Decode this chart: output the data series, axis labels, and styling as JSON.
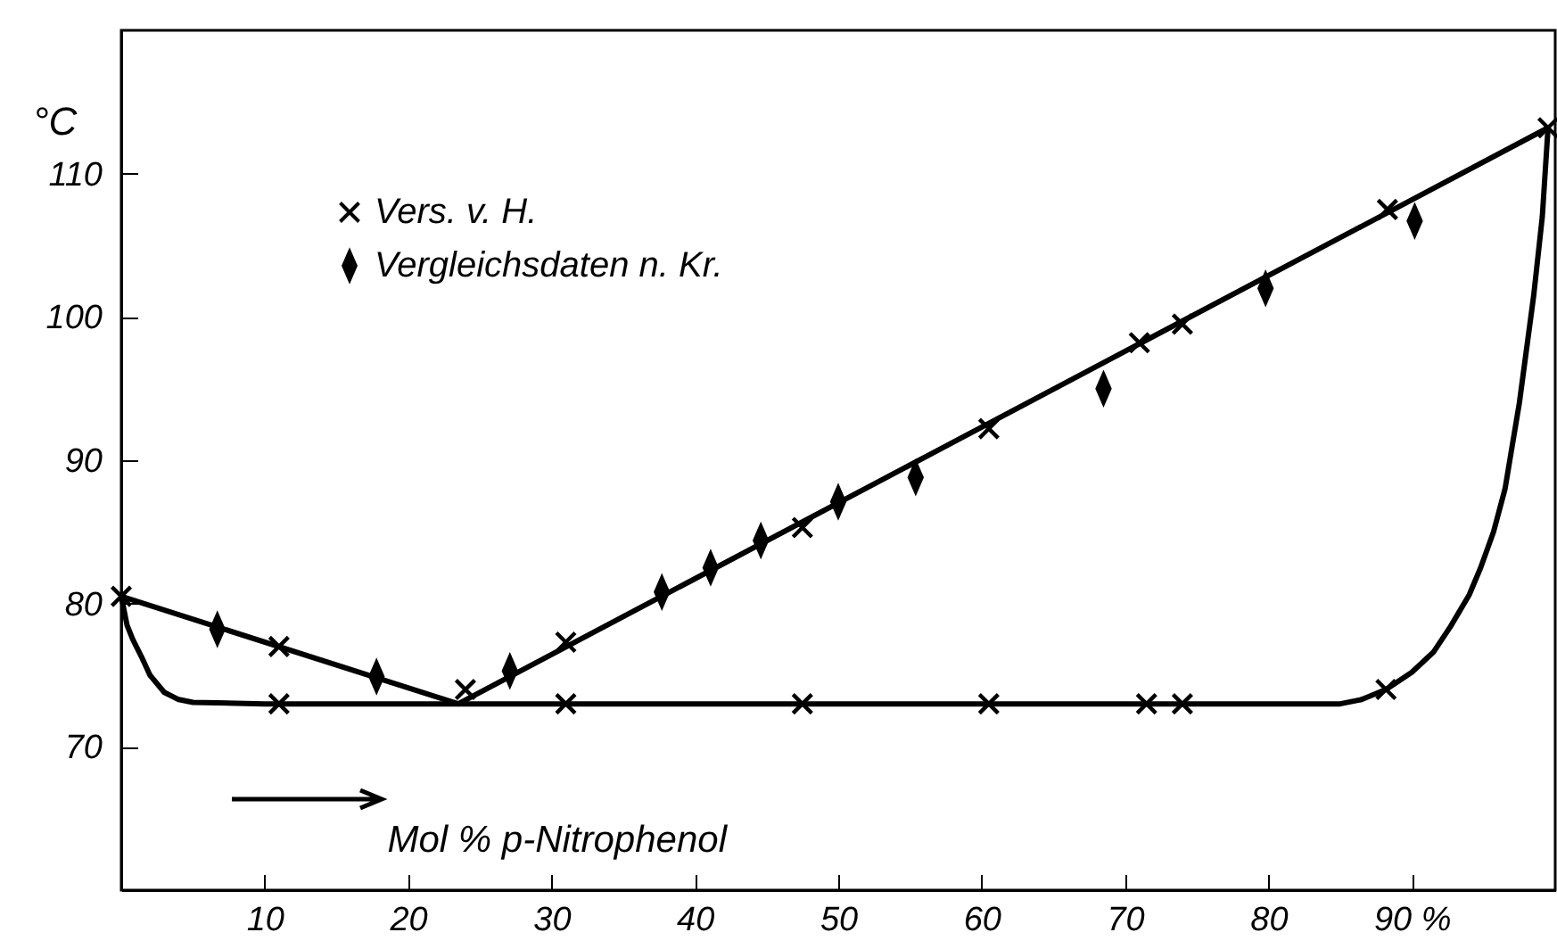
{
  "chart_data": {
    "type": "line",
    "xlabel": "Mol % p-Nitrophenol",
    "ylabel": "°C",
    "xlim": [
      0,
      100
    ],
    "ylim": [
      60,
      120
    ],
    "xticks": [
      10,
      20,
      30,
      40,
      50,
      60,
      70,
      80,
      {
        "value": 90,
        "label": "90 %"
      }
    ],
    "yticks": [
      70,
      80,
      90,
      100,
      110
    ],
    "grid": false,
    "legend": "top left",
    "series": [
      {
        "color": "#000000",
        "marker": "none",
        "x": [
          0,
          23.5,
          99.5
        ],
        "values": [
          80.5,
          73,
          113.2
        ]
      },
      {
        "color": "#000000",
        "marker": "none",
        "x": [
          0,
          0.4,
          0.8,
          1.4,
          2,
          3,
          4,
          5,
          10,
          85,
          86.5,
          88.2,
          90,
          91.5,
          92.7,
          94,
          94.8,
          95.7,
          96.5,
          97.5,
          98.5,
          99.1,
          99.5
        ],
        "values": [
          80.5,
          78.5,
          77.5,
          76.3,
          75,
          73.8,
          73.3,
          73.1,
          73,
          73,
          73.3,
          74,
          75.2,
          76.6,
          78.4,
          80.6,
          82.5,
          85,
          88,
          94,
          101.5,
          107,
          113.2
        ]
      },
      {
        "type": "scatter",
        "name": "Vers. v. H.",
        "color": "#000000",
        "marker": "cross",
        "x": [
          0,
          11,
          11,
          24,
          31,
          31,
          47.5,
          47.5,
          60.5,
          60.5,
          71,
          71.5,
          74,
          74,
          88.2,
          88.3,
          99.5
        ],
        "values": [
          80.5,
          77,
          73,
          74,
          77.3,
          73,
          85.3,
          73,
          92.2,
          73,
          98.2,
          73,
          99.5,
          73,
          74,
          107.5,
          113.2
        ]
      },
      {
        "type": "scatter",
        "name": "Vergleichsdaten n. Kr.",
        "color": "#000000",
        "marker": "diamond",
        "x": [
          6.7,
          17.8,
          27.1,
          37.7,
          41.1,
          44.6,
          50,
          55.4,
          68.5,
          79.8,
          90.2
        ],
        "values": [
          78.2,
          74.9,
          75.3,
          80.8,
          82.5,
          84.4,
          87.1,
          88.8,
          95,
          102,
          106.7
        ]
      }
    ]
  }
}
